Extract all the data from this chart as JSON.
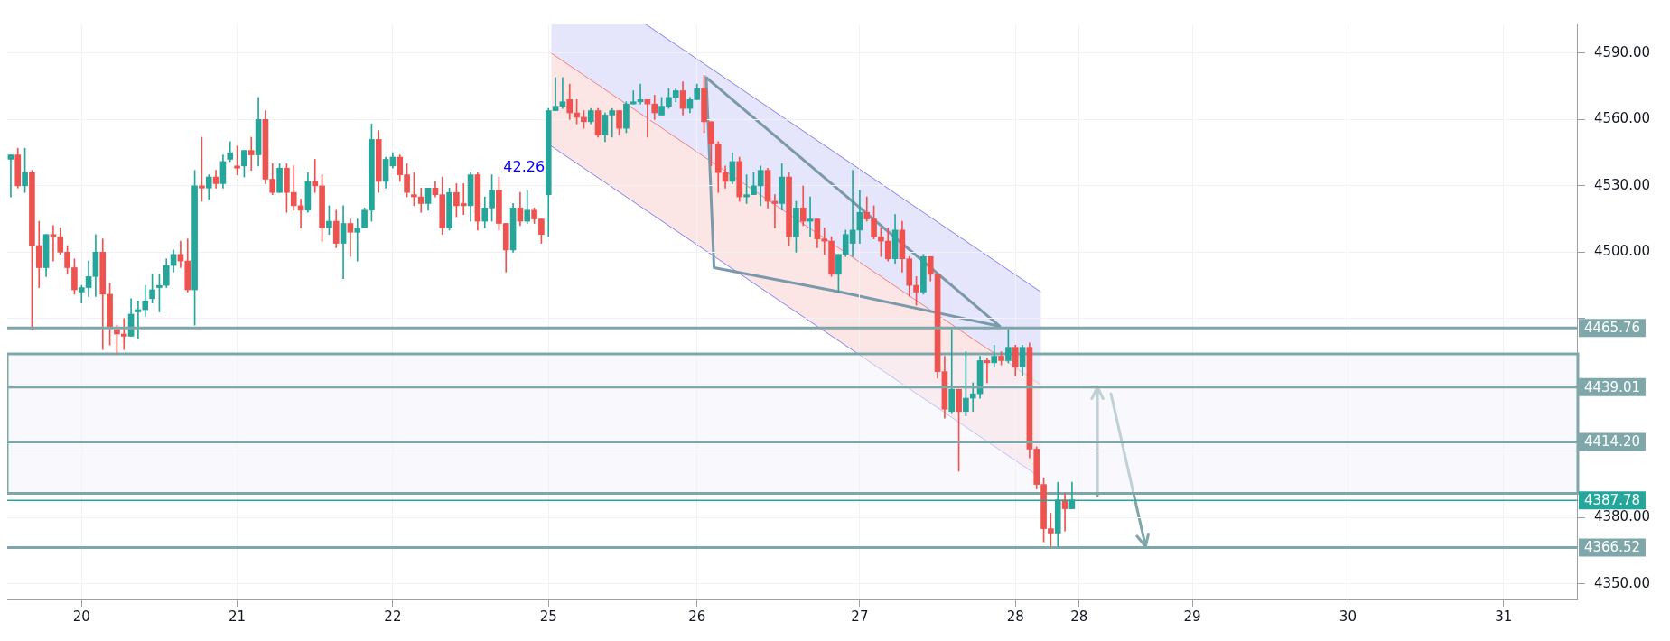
{
  "chart_data": {
    "type": "candlestick",
    "categories": [
      null,
      null,
      null,
      null,
      null,
      null,
      null,
      null,
      null,
      null,
      "20",
      null,
      null,
      null,
      null,
      null,
      null,
      null,
      null,
      null,
      null,
      null,
      null,
      null,
      null,
      null,
      null,
      null,
      null,
      null,
      null,
      null,
      "21",
      null,
      null,
      null,
      null,
      null,
      null,
      null,
      null,
      null,
      null,
      null,
      null,
      null,
      null,
      null,
      null,
      null,
      null,
      null,
      null,
      null,
      "22",
      null,
      null,
      null,
      null,
      null,
      null,
      null,
      null,
      null,
      null,
      null,
      null,
      null,
      null,
      null,
      null,
      null,
      null,
      null,
      null,
      null,
      "25",
      null,
      null,
      null,
      null,
      null,
      null,
      null,
      null,
      null,
      null,
      null,
      null,
      null,
      null,
      null,
      null,
      null,
      null,
      null,
      null,
      "26",
      null,
      null,
      null,
      null,
      null,
      null,
      null,
      null,
      null,
      null,
      null,
      null,
      null,
      null,
      null,
      null,
      null,
      null,
      null,
      null,
      null,
      null,
      "27",
      null,
      null,
      null,
      null,
      null,
      null,
      null,
      null,
      null,
      null,
      null,
      null,
      null,
      null,
      null,
      null,
      null,
      null,
      null,
      null,
      null,
      "28",
      null,
      null,
      null,
      null,
      null,
      null,
      null,
      null,
      "28",
      null,
      null,
      null,
      null,
      null,
      null,
      null,
      null,
      null,
      null,
      null,
      null,
      null,
      null,
      null,
      "29",
      null,
      null,
      null,
      null,
      null,
      null,
      null,
      null,
      null,
      null,
      null,
      null,
      null,
      null,
      null,
      null,
      null,
      null,
      null,
      null,
      null,
      "30",
      null,
      null,
      null,
      null,
      null,
      null,
      null,
      null,
      null,
      null,
      null,
      null,
      null,
      null,
      null,
      null,
      null,
      null,
      null,
      null,
      null,
      "31",
      null,
      null,
      null,
      null,
      null,
      null,
      null,
      null,
      null,
      null
    ],
    "ohlc": [
      [
        4542,
        4544,
        4525,
        4544
      ],
      [
        4544,
        4547,
        4529,
        4530
      ],
      [
        4530,
        4547,
        4527,
        4536
      ],
      [
        4536,
        4537,
        4465,
        4503
      ],
      [
        4503,
        4514,
        4484,
        4493
      ],
      [
        4493,
        4508,
        4489,
        4508
      ],
      [
        4508,
        4512,
        4496,
        4507
      ],
      [
        4507,
        4511,
        4499,
        4500
      ],
      [
        4500,
        4503,
        4490,
        4493
      ],
      [
        4493,
        4497,
        4481,
        4483
      ],
      [
        4482,
        4485,
        4477,
        4484
      ],
      [
        4484,
        4496,
        4480,
        4489
      ],
      [
        4489,
        4508,
        4480,
        4500
      ],
      [
        4500,
        4506,
        4456,
        4481
      ],
      [
        4481,
        4486,
        4458,
        4466
      ],
      [
        4465,
        4467,
        4454,
        4463
      ],
      [
        4463,
        4470,
        4456,
        4462
      ],
      [
        4462,
        4479,
        4462,
        4472
      ],
      [
        4473,
        4478,
        4461,
        4474
      ],
      [
        4474,
        4485,
        4471,
        4478
      ],
      [
        4479,
        4490,
        4477,
        4483
      ],
      [
        4484,
        4490,
        4473,
        4485
      ],
      [
        4485,
        4497,
        4484,
        4494
      ],
      [
        4494,
        4501,
        4491,
        4499
      ],
      [
        4499,
        4505,
        4493,
        4496
      ],
      [
        4496,
        4506,
        4482,
        4483
      ],
      [
        4483,
        4537,
        4467,
        4530
      ],
      [
        4530,
        4552,
        4523,
        4529
      ],
      [
        4529,
        4535,
        4524,
        4534
      ],
      [
        4534,
        4537,
        4529,
        4531
      ],
      [
        4531,
        4544,
        4529,
        4541
      ],
      [
        4542,
        4550,
        4541,
        4545
      ],
      [
        4539,
        4548,
        4535,
        4538
      ],
      [
        4539,
        4546,
        4534,
        4546
      ],
      [
        4546,
        4552,
        4537,
        4544
      ],
      [
        4544,
        4570,
        4539,
        4560
      ],
      [
        4560,
        4564,
        4531,
        4533
      ],
      [
        4533,
        4540,
        4526,
        4527
      ],
      [
        4527,
        4540,
        4527,
        4538
      ],
      [
        4538,
        4540,
        4518,
        4527
      ],
      [
        4527,
        4539,
        4519,
        4521
      ],
      [
        4521,
        4524,
        4511,
        4519
      ],
      [
        4519,
        4536,
        4518,
        4532
      ],
      [
        4532,
        4542,
        4527,
        4530
      ],
      [
        4530,
        4535,
        4505,
        4511
      ],
      [
        4511,
        4521,
        4508,
        4514
      ],
      [
        4514,
        4519,
        4502,
        4504
      ],
      [
        4504,
        4521,
        4488,
        4513
      ],
      [
        4513,
        4515,
        4498,
        4509
      ],
      [
        4509,
        4515,
        4496,
        4511
      ],
      [
        4511,
        4520,
        4511,
        4519
      ],
      [
        4519,
        4558,
        4514,
        4551
      ],
      [
        4551,
        4555,
        4527,
        4532
      ],
      [
        4532,
        4543,
        4529,
        4542
      ],
      [
        4539,
        4545,
        4538,
        4543
      ],
      [
        4543,
        4544,
        4532,
        4535
      ],
      [
        4535,
        4540,
        4525,
        4527
      ],
      [
        4526,
        4536,
        4521,
        4525
      ],
      [
        4525,
        4529,
        4518,
        4522
      ],
      [
        4522,
        4529,
        4519,
        4529
      ],
      [
        4529,
        4532,
        4525,
        4526
      ],
      [
        4526,
        4534,
        4508,
        4511
      ],
      [
        4511,
        4529,
        4510,
        4527
      ],
      [
        4527,
        4531,
        4516,
        4521
      ],
      [
        4522,
        4531,
        4517,
        4521
      ],
      [
        4521,
        4536,
        4514,
        4535
      ],
      [
        4535,
        4536,
        4510,
        4514
      ],
      [
        4514,
        4525,
        4511,
        4520
      ],
      [
        4520,
        4535,
        4514,
        4528
      ],
      [
        4528,
        4534,
        4510,
        4513
      ],
      [
        4513,
        4513,
        4491,
        4501
      ],
      [
        4501,
        4522,
        4500,
        4520
      ],
      [
        4520,
        4527,
        4512,
        4514
      ],
      [
        4514,
        4528,
        4513,
        4519
      ],
      [
        4519,
        4520,
        4513,
        4515
      ],
      [
        4515,
        4515,
        4504,
        4508
      ],
      [
        4526,
        4565,
        4507,
        4564
      ],
      [
        4564,
        4579,
        4564,
        4566
      ],
      [
        4566,
        4579,
        4565,
        4568
      ],
      [
        4569,
        4576,
        4560,
        4563
      ],
      [
        4563,
        4569,
        4558,
        4561
      ],
      [
        4561,
        4564,
        4556,
        4559
      ],
      [
        4559,
        4565,
        4558,
        4564
      ],
      [
        4564,
        4565,
        4552,
        4553
      ],
      [
        4553,
        4563,
        4550,
        4562
      ],
      [
        4562,
        4565,
        4552,
        4564
      ],
      [
        4564,
        4564,
        4553,
        4556
      ],
      [
        4556,
        4568,
        4554,
        4567
      ],
      [
        4567,
        4573,
        4567,
        4568
      ],
      [
        4568,
        4576,
        4567,
        4569
      ],
      [
        4569,
        4569,
        4552,
        4567
      ],
      [
        4567,
        4571,
        4560,
        4563
      ],
      [
        4562,
        4570,
        4562,
        4566
      ],
      [
        4566,
        4574,
        4565,
        4570
      ],
      [
        4570,
        4574,
        4568,
        4573
      ],
      [
        4573,
        4577,
        4562,
        4565
      ],
      [
        4565,
        4570,
        4563,
        4569
      ],
      [
        4569,
        4576,
        4569,
        4574
      ],
      [
        4574,
        4580,
        4554,
        4559
      ],
      [
        4559,
        4559,
        4539,
        4549
      ],
      [
        4549,
        4550,
        4527,
        4536
      ],
      [
        4536,
        4539,
        4529,
        4532
      ],
      [
        4532,
        4545,
        4531,
        4541
      ],
      [
        4541,
        4543,
        4523,
        4525
      ],
      [
        4525,
        4535,
        4522,
        4526
      ],
      [
        4526,
        4536,
        4526,
        4530
      ],
      [
        4530,
        4539,
        4521,
        4537
      ],
      [
        4537,
        4538,
        4520,
        4523
      ],
      [
        4523,
        4526,
        4511,
        4522
      ],
      [
        4522,
        4540,
        4519,
        4534
      ],
      [
        4534,
        4536,
        4503,
        4507
      ],
      [
        4507,
        4523,
        4500,
        4520
      ],
      [
        4520,
        4530,
        4512,
        4514
      ],
      [
        4514,
        4525,
        4507,
        4515
      ],
      [
        4515,
        4515,
        4502,
        4506
      ],
      [
        4506,
        4511,
        4499,
        4505
      ],
      [
        4505,
        4507,
        4489,
        4490
      ],
      [
        4490,
        4499,
        4482,
        4499
      ],
      [
        4499,
        4510,
        4498,
        4508
      ],
      [
        4504,
        4537,
        4498,
        4510
      ],
      [
        4510,
        4528,
        4504,
        4518
      ],
      [
        4518,
        4525,
        4514,
        4515
      ],
      [
        4515,
        4521,
        4506,
        4507
      ],
      [
        4507,
        4511,
        4498,
        4505
      ],
      [
        4505,
        4511,
        4496,
        4497
      ],
      [
        4497,
        4517,
        4495,
        4510
      ],
      [
        4510,
        4514,
        4491,
        4497
      ],
      [
        4497,
        4498,
        4480,
        4485
      ],
      [
        4485,
        4489,
        4476,
        4482
      ],
      [
        4482,
        4499,
        4481,
        4498
      ],
      [
        4498,
        4498,
        4487,
        4490
      ],
      [
        4490,
        4490,
        4443,
        4446
      ],
      [
        4446,
        4453,
        4425,
        4429
      ],
      [
        4428,
        4465,
        4427,
        4438
      ],
      [
        4438,
        4438,
        4401,
        4428
      ],
      [
        4428,
        4455,
        4426,
        4434
      ],
      [
        4434,
        4441,
        4428,
        4436
      ],
      [
        4436,
        4453,
        4434,
        4451
      ],
      [
        4451,
        4452,
        4441,
        4450
      ],
      [
        4450,
        4458,
        4448,
        4453
      ],
      [
        4453,
        4455,
        4449,
        4451
      ],
      [
        4451,
        4465,
        4450,
        4457
      ],
      [
        4457,
        4458,
        4444,
        4448
      ],
      [
        4448,
        4458,
        4444,
        4457
      ],
      [
        4457,
        4459,
        4407,
        4411
      ],
      [
        4411,
        4412,
        4393,
        4395
      ],
      [
        4395,
        4398,
        4369,
        4375
      ],
      [
        4375,
        4382,
        4367,
        4373
      ],
      [
        4373,
        4396,
        4367,
        4388
      ],
      [
        4388,
        4391,
        4374,
        4384
      ],
      [
        4384,
        4396,
        4384,
        4388
      ],
      null,
      null,
      null,
      null,
      null,
      null,
      null,
      null,
      null,
      null,
      null,
      null,
      null,
      null,
      null,
      null,
      null,
      null,
      null,
      null,
      null,
      null,
      null,
      null,
      null,
      null,
      null,
      null,
      null,
      null,
      null,
      null,
      null,
      null,
      null,
      null,
      null,
      null,
      null,
      null,
      null,
      null,
      null,
      null,
      null,
      null,
      null,
      null,
      null,
      null,
      null,
      null,
      null,
      null,
      null,
      null,
      null,
      null,
      null,
      null,
      null,
      null,
      null,
      null,
      null,
      null,
      null,
      null,
      null,
      null,
      null
    ],
    "colors": [
      "#26a69a",
      "#ef5350",
      "#26a69a",
      "#ef5350",
      "#ef5350",
      "#26a69a",
      "#ef5350",
      "#ef5350",
      "#ef5350",
      "#ef5350",
      "#26a69a",
      "#26a69a",
      "#26a69a",
      "#ef5350",
      "#ef5350",
      "#ef5350",
      "#ef5350",
      "#26a69a",
      "#26a69a",
      "#26a69a",
      "#26a69a",
      "#26a69a",
      "#26a69a",
      "#26a69a",
      "#ef5350",
      "#ef5350",
      "#26a69a",
      "#ef5350",
      "#26a69a",
      "#ef5350",
      "#26a69a",
      "#26a69a",
      "#ef5350",
      "#26a69a",
      "#ef5350",
      "#26a69a",
      "#ef5350",
      "#ef5350",
      "#26a69a",
      "#ef5350",
      "#ef5350",
      "#ef5350",
      "#26a69a",
      "#ef5350",
      "#ef5350",
      "#26a69a",
      "#ef5350",
      "#26a69a",
      "#ef5350",
      "#26a69a",
      "#26a69a",
      "#26a69a",
      "#ef5350",
      "#26a69a",
      "#26a69a",
      "#ef5350",
      "#ef5350",
      "#ef5350",
      "#ef5350",
      "#26a69a",
      "#ef5350",
      "#ef5350",
      "#26a69a",
      "#ef5350",
      "#ef5350",
      "#26a69a",
      "#ef5350",
      "#26a69a",
      "#26a69a",
      "#ef5350",
      "#ef5350",
      "#26a69a",
      "#ef5350",
      "#26a69a",
      "#ef5350",
      "#ef5350",
      "#26a69a",
      "#26a69a",
      "#26a69a",
      "#ef5350",
      "#ef5350",
      "#ef5350",
      "#26a69a",
      "#ef5350",
      "#26a69a",
      "#26a69a",
      "#ef5350",
      "#26a69a",
      "#26a69a",
      "#26a69a",
      "#ef5350",
      "#ef5350",
      "#26a69a",
      "#26a69a",
      "#26a69a",
      "#ef5350",
      "#26a69a",
      "#26a69a",
      "#ef5350",
      "#ef5350",
      "#ef5350",
      "#ef5350",
      "#26a69a",
      "#ef5350",
      "#26a69a",
      "#26a69a",
      "#26a69a",
      "#ef5350",
      "#ef5350",
      "#26a69a",
      "#ef5350",
      "#26a69a",
      "#ef5350",
      "#26a69a",
      "#ef5350",
      "#ef5350",
      "#ef5350",
      "#26a69a",
      "#26a69a",
      "#26a69a",
      "#26a69a",
      "#ef5350",
      "#ef5350",
      "#ef5350",
      "#ef5350",
      "#26a69a",
      "#ef5350",
      "#ef5350",
      "#ef5350",
      "#26a69a",
      "#ef5350",
      "#ef5350",
      "#ef5350",
      "#26a69a",
      "#ef5350",
      "#26a69a",
      "#26a69a",
      "#26a69a",
      "#ef5350",
      "#26a69a",
      "#ef5350",
      "#26a69a",
      "#ef5350",
      "#26a69a",
      "#ef5350",
      "#ef5350",
      "#ef5350",
      "#ef5350",
      "#26a69a",
      "#ef5350",
      "#26a69a",
      null,
      null,
      null,
      null,
      null,
      null,
      null,
      null,
      null,
      null,
      null,
      null,
      null,
      null,
      null,
      null,
      null,
      null,
      null,
      null,
      null,
      null,
      null,
      null,
      null,
      null,
      null,
      null,
      null,
      null,
      null,
      null,
      null,
      null,
      null,
      null,
      null,
      null,
      null,
      null,
      null,
      null,
      null,
      null,
      null,
      null,
      null,
      null,
      null,
      null,
      null,
      null,
      null,
      null,
      null,
      null,
      null,
      null,
      null,
      null,
      null,
      null,
      null,
      null,
      null,
      null,
      null,
      null,
      null,
      null,
      null
    ],
    "ylim": [
      4343,
      4603
    ],
    "yticks": [
      {
        "value": 4350,
        "label": "4350.00"
      },
      {
        "value": 4380,
        "label": "4380.00"
      },
      {
        "value": 4410,
        "label": null
      },
      {
        "value": 4440,
        "label": null
      },
      {
        "value": 4470,
        "label": null
      },
      {
        "value": 4500,
        "label": "4500.00"
      },
      {
        "value": 4530,
        "label": "4530.00"
      },
      {
        "value": 4560,
        "label": "4560.00"
      },
      {
        "value": 4590,
        "label": "4590.00"
      }
    ],
    "ref_lines": [
      {
        "axis": "y",
        "value": 4465.76,
        "label": "4465.76",
        "color": "#7fa7aa"
      },
      {
        "axis": "y",
        "value": 4439.01,
        "label": "4439.01",
        "color": "#7fa7aa"
      },
      {
        "axis": "y",
        "value": 4414.2,
        "label": "4414.20",
        "color": "#7fa7aa"
      },
      {
        "axis": "y",
        "value": 4387.78,
        "label": "4387.78",
        "color": "#26a69a"
      },
      {
        "axis": "y",
        "value": 4366.52,
        "label": "4366.52",
        "color": "#7fa7aa"
      }
    ],
    "bands": [
      {
        "axis": "y",
        "from": 4391,
        "to": 4454,
        "color": "#f4f3fa"
      }
    ],
    "annotations": [
      {
        "text": "42.26",
        "x": "25",
        "y": 4538
      }
    ],
    "grid": true,
    "legend": false
  }
}
